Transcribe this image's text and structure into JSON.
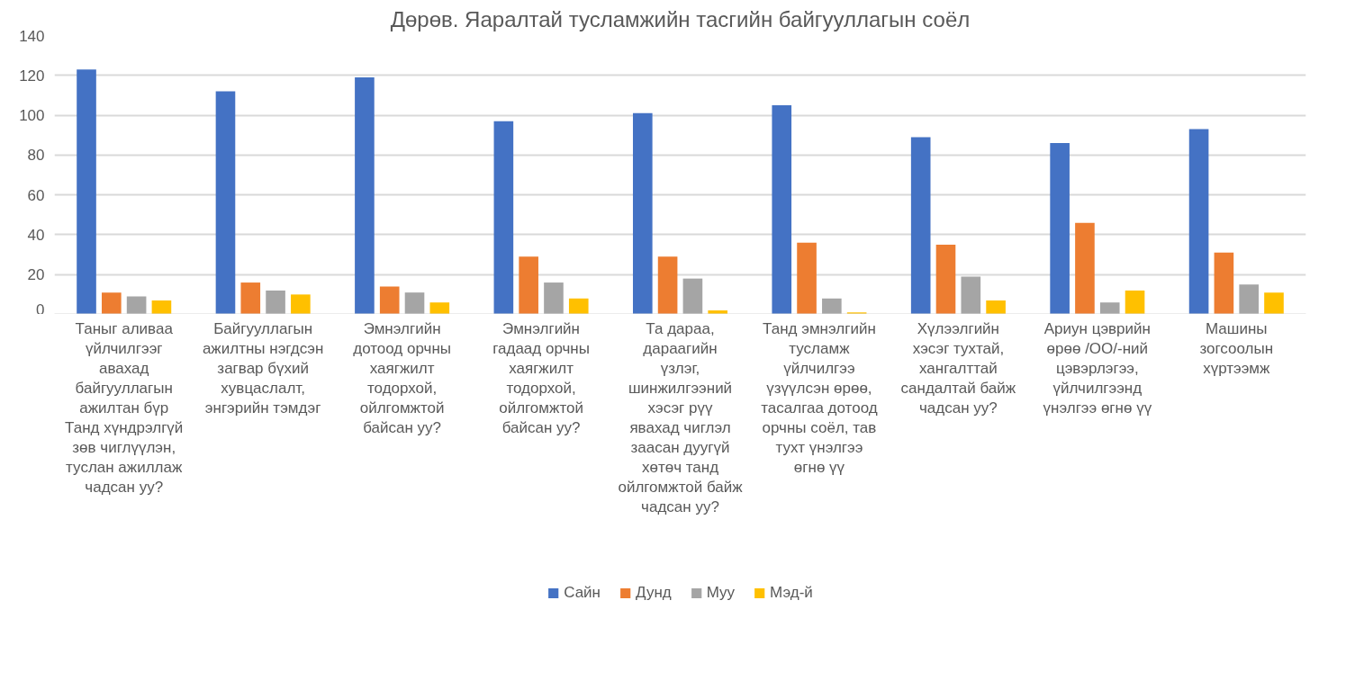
{
  "chart_data": {
    "type": "bar",
    "title": "Дөрөв. Яаралтай тусламжийн тасгийн байгууллагын соёл",
    "categories": [
      "Таныг аливаа үйлчилгээг авахад байгууллагын ажилтан бүр Танд хүндрэлгүй зөв чиглүүлэн, туслан ажиллаж чадсан уу?",
      "Байгууллагын ажилтны нэгдсэн загвар бүхий хувцаслалт, энгэрийн тэмдэг",
      "Эмнэлгийн дотоод орчны хаягжилт тодорхой, ойлгомжтой байсан уу?",
      "Эмнэлгийн гадаад орчны хаягжилт тодорхой, ойлгомжтой байсан уу?",
      "Та дараа, дараагийн үзлэг, шинжилгээний хэсэг рүү явахад чиглэл заасан дуугүй хөтөч танд ойлгомжтой байж чадсан уу?",
      "Танд эмнэлгийн тусламж үйлчилгээ үзүүлсэн өрөө, тасалгаа дотоод орчны соёл, тав тухт үнэлгээ өгнө үү",
      "Хүлээлгийн хэсэг тухтай, хангалттай сандалтай байж чадсан уу?",
      "Ариун цэврийн өрөө /ОО/-ний цэвэрлэгээ, үйлчилгээнд үнэлгээ өгнө үү",
      "Машины зогсоолын хүртээмж"
    ],
    "series": [
      {
        "name": "Сайн",
        "color": "#4472c4",
        "values": [
          123,
          112,
          119,
          97,
          101,
          105,
          89,
          86,
          93
        ]
      },
      {
        "name": "Дунд",
        "color": "#ed7d31",
        "values": [
          11,
          16,
          14,
          29,
          29,
          36,
          35,
          46,
          31
        ]
      },
      {
        "name": "Муу",
        "color": "#a5a5a5",
        "values": [
          9,
          12,
          11,
          16,
          18,
          8,
          19,
          6,
          15
        ]
      },
      {
        "name": "Мэд-й",
        "color": "#ffc000",
        "values": [
          7,
          10,
          6,
          8,
          2,
          1,
          7,
          12,
          11
        ]
      }
    ],
    "ylim": [
      0,
      140
    ],
    "yticks": [
      0,
      20,
      40,
      60,
      80,
      100,
      120,
      140
    ],
    "grid": "y",
    "legend": "bottom"
  }
}
